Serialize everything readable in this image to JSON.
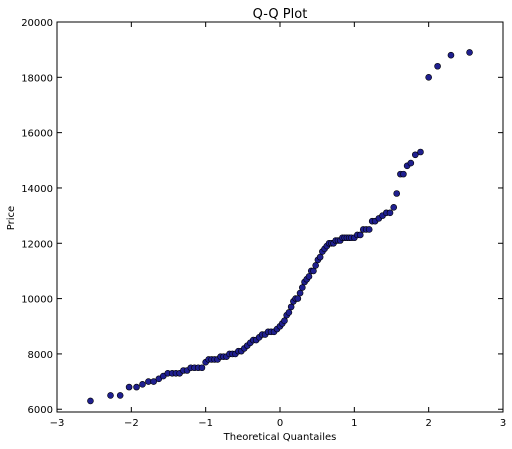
{
  "chart_data": {
    "type": "scatter",
    "title": "Q-Q Plot",
    "xlabel": "Theoretical Quantailes",
    "ylabel": "Price",
    "xlim": [
      -3,
      3
    ],
    "ylim": [
      5900,
      20000
    ],
    "x_ticks": [
      "−3",
      "−2",
      "−1",
      "0",
      "1",
      "2",
      "3"
    ],
    "x_tick_values": [
      -3,
      -2,
      -1,
      0,
      1,
      2,
      3
    ],
    "y_ticks": [
      "6000",
      "8000",
      "10000",
      "12000",
      "14000",
      "16000",
      "18000",
      "20000"
    ],
    "y_tick_values": [
      6000,
      8000,
      10000,
      12000,
      14000,
      16000,
      18000,
      20000
    ],
    "grid": false,
    "marker_color": "#1f1f8f",
    "marker_edge": "#000000",
    "points": [
      [
        -2.55,
        6300
      ],
      [
        -2.28,
        6500
      ],
      [
        -2.15,
        6500
      ],
      [
        -2.03,
        6800
      ],
      [
        -1.93,
        6800
      ],
      [
        -1.85,
        6900
      ],
      [
        -1.77,
        7000
      ],
      [
        -1.7,
        7000
      ],
      [
        -1.63,
        7100
      ],
      [
        -1.57,
        7200
      ],
      [
        -1.51,
        7300
      ],
      [
        -1.45,
        7300
      ],
      [
        -1.4,
        7300
      ],
      [
        -1.35,
        7300
      ],
      [
        -1.3,
        7400
      ],
      [
        -1.25,
        7400
      ],
      [
        -1.2,
        7500
      ],
      [
        -1.15,
        7500
      ],
      [
        -1.1,
        7500
      ],
      [
        -1.05,
        7500
      ],
      [
        -1.0,
        7700
      ],
      [
        -0.96,
        7800
      ],
      [
        -0.92,
        7800
      ],
      [
        -0.88,
        7800
      ],
      [
        -0.84,
        7800
      ],
      [
        -0.8,
        7900
      ],
      [
        -0.76,
        7900
      ],
      [
        -0.72,
        7900
      ],
      [
        -0.68,
        8000
      ],
      [
        -0.64,
        8000
      ],
      [
        -0.6,
        8000
      ],
      [
        -0.56,
        8100
      ],
      [
        -0.52,
        8100
      ],
      [
        -0.48,
        8200
      ],
      [
        -0.44,
        8300
      ],
      [
        -0.4,
        8400
      ],
      [
        -0.36,
        8500
      ],
      [
        -0.32,
        8500
      ],
      [
        -0.28,
        8600
      ],
      [
        -0.24,
        8700
      ],
      [
        -0.2,
        8700
      ],
      [
        -0.16,
        8800
      ],
      [
        -0.12,
        8800
      ],
      [
        -0.08,
        8800
      ],
      [
        -0.04,
        8900
      ],
      [
        0.0,
        9000
      ],
      [
        0.03,
        9100
      ],
      [
        0.06,
        9200
      ],
      [
        0.09,
        9400
      ],
      [
        0.12,
        9500
      ],
      [
        0.15,
        9700
      ],
      [
        0.18,
        9900
      ],
      [
        0.21,
        10000
      ],
      [
        0.24,
        10000
      ],
      [
        0.27,
        10200
      ],
      [
        0.3,
        10400
      ],
      [
        0.33,
        10600
      ],
      [
        0.36,
        10700
      ],
      [
        0.39,
        10800
      ],
      [
        0.42,
        11000
      ],
      [
        0.45,
        11000
      ],
      [
        0.48,
        11200
      ],
      [
        0.51,
        11400
      ],
      [
        0.54,
        11500
      ],
      [
        0.57,
        11700
      ],
      [
        0.6,
        11800
      ],
      [
        0.63,
        11900
      ],
      [
        0.66,
        12000
      ],
      [
        0.69,
        12000
      ],
      [
        0.72,
        12000
      ],
      [
        0.75,
        12100
      ],
      [
        0.78,
        12100
      ],
      [
        0.81,
        12100
      ],
      [
        0.84,
        12200
      ],
      [
        0.87,
        12200
      ],
      [
        0.9,
        12200
      ],
      [
        0.93,
        12200
      ],
      [
        0.96,
        12200
      ],
      [
        1.0,
        12200
      ],
      [
        1.04,
        12300
      ],
      [
        1.08,
        12300
      ],
      [
        1.12,
        12500
      ],
      [
        1.16,
        12500
      ],
      [
        1.2,
        12500
      ],
      [
        1.24,
        12800
      ],
      [
        1.28,
        12800
      ],
      [
        1.33,
        12900
      ],
      [
        1.38,
        13000
      ],
      [
        1.43,
        13100
      ],
      [
        1.48,
        13100
      ],
      [
        1.53,
        13300
      ],
      [
        1.57,
        13800
      ],
      [
        1.62,
        14500
      ],
      [
        1.66,
        14500
      ],
      [
        1.71,
        14800
      ],
      [
        1.76,
        14900
      ],
      [
        1.82,
        15200
      ],
      [
        1.89,
        15300
      ],
      [
        2.0,
        18000
      ],
      [
        2.12,
        18400
      ],
      [
        2.3,
        18800
      ],
      [
        2.55,
        18900
      ]
    ]
  }
}
